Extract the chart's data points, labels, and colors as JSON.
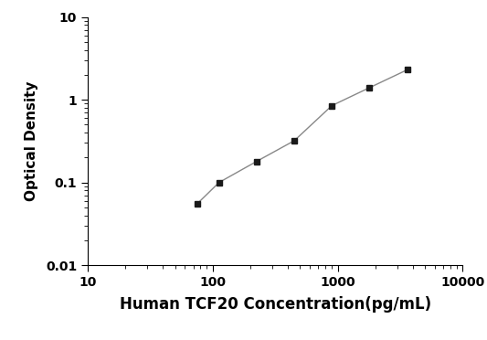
{
  "x": [
    75,
    112.5,
    225,
    450,
    900,
    1800,
    3600
  ],
  "y": [
    0.055,
    0.1,
    0.18,
    0.32,
    0.85,
    1.4,
    2.3
  ],
  "xlabel": "Human TCF20 Concentration(pg/mL)",
  "ylabel": "Optical Density",
  "xlim": [
    10,
    10000
  ],
  "ylim": [
    0.01,
    10
  ],
  "x_ticks": [
    10,
    100,
    1000,
    10000
  ],
  "x_tick_labels": [
    "10",
    "100",
    "1000",
    "10000"
  ],
  "y_ticks": [
    0.01,
    0.1,
    1,
    10
  ],
  "y_tick_labels": [
    "0.01",
    "0.1",
    "1",
    "10"
  ],
  "line_color": "#888888",
  "marker_color": "#1a1a1a",
  "marker": "s",
  "marker_size": 5,
  "line_width": 1.0,
  "background_color": "#ffffff",
  "xlabel_fontsize": 12,
  "ylabel_fontsize": 11,
  "tick_fontsize": 10
}
